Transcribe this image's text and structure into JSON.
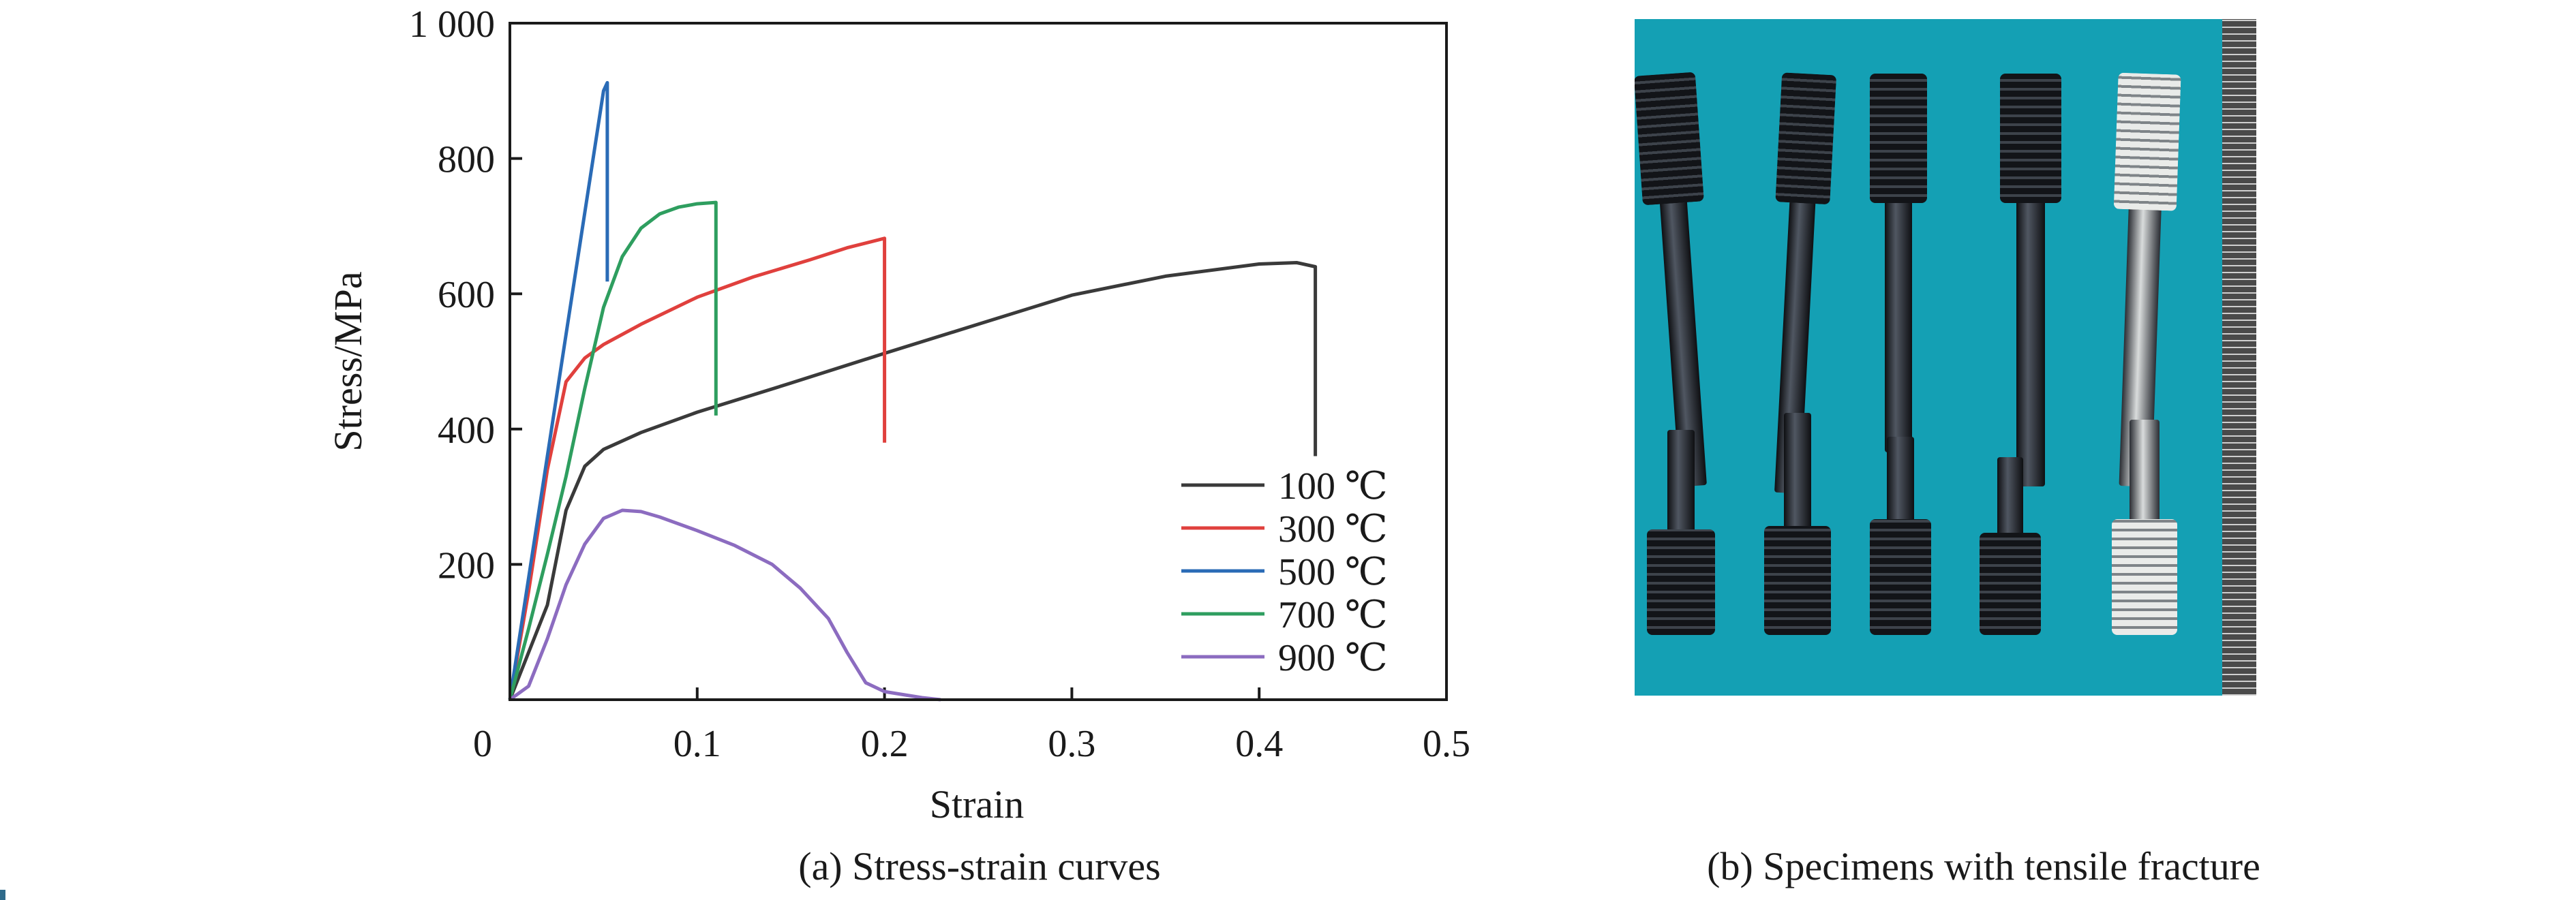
{
  "chart_data": {
    "type": "line",
    "title": "",
    "xlabel": "Strain",
    "ylabel": "Stress/MPa",
    "xlim": [
      0,
      0.5
    ],
    "ylim": [
      0,
      1000
    ],
    "xticks": [
      0,
      0.1,
      0.2,
      0.3,
      0.4,
      0.5
    ],
    "xtick_labels": [
      "0",
      "0.1",
      "0.2",
      "0.3",
      "0.4",
      "0.5"
    ],
    "yticks": [
      200,
      400,
      600,
      800,
      1000
    ],
    "ytick_labels": [
      "200",
      "400",
      "600",
      "800",
      "1 000"
    ],
    "grid": false,
    "legend": "bottom-right",
    "series": [
      {
        "name": "100 ℃",
        "color": "#3a3a3a",
        "points": [
          [
            0,
            0
          ],
          [
            0.02,
            140
          ],
          [
            0.03,
            280
          ],
          [
            0.04,
            345
          ],
          [
            0.05,
            370
          ],
          [
            0.07,
            395
          ],
          [
            0.1,
            425
          ],
          [
            0.15,
            468
          ],
          [
            0.2,
            512
          ],
          [
            0.25,
            555
          ],
          [
            0.3,
            598
          ],
          [
            0.35,
            626
          ],
          [
            0.4,
            644
          ],
          [
            0.42,
            646
          ],
          [
            0.43,
            640
          ],
          [
            0.43,
            360
          ]
        ]
      },
      {
        "name": "300 ℃",
        "color": "#e0403d",
        "points": [
          [
            0,
            0
          ],
          [
            0.01,
            160
          ],
          [
            0.02,
            340
          ],
          [
            0.03,
            470
          ],
          [
            0.04,
            505
          ],
          [
            0.05,
            525
          ],
          [
            0.07,
            555
          ],
          [
            0.1,
            595
          ],
          [
            0.13,
            625
          ],
          [
            0.16,
            650
          ],
          [
            0.18,
            668
          ],
          [
            0.2,
            682
          ],
          [
            0.2,
            380
          ]
        ]
      },
      {
        "name": "500 ℃",
        "color": "#2a6bb6",
        "points": [
          [
            0,
            0
          ],
          [
            0.01,
            180
          ],
          [
            0.02,
            360
          ],
          [
            0.03,
            540
          ],
          [
            0.04,
            720
          ],
          [
            0.05,
            900
          ],
          [
            0.052,
            912
          ],
          [
            0.052,
            618
          ]
        ]
      },
      {
        "name": "700 ℃",
        "color": "#2e9e5f",
        "points": [
          [
            0,
            0
          ],
          [
            0.01,
            105
          ],
          [
            0.02,
            215
          ],
          [
            0.03,
            330
          ],
          [
            0.04,
            460
          ],
          [
            0.05,
            580
          ],
          [
            0.06,
            655
          ],
          [
            0.07,
            697
          ],
          [
            0.08,
            718
          ],
          [
            0.09,
            728
          ],
          [
            0.1,
            733
          ],
          [
            0.11,
            735
          ],
          [
            0.11,
            420
          ]
        ]
      },
      {
        "name": "900 ℃",
        "color": "#8c6cc0",
        "points": [
          [
            0,
            0
          ],
          [
            0.01,
            20
          ],
          [
            0.02,
            90
          ],
          [
            0.03,
            170
          ],
          [
            0.04,
            230
          ],
          [
            0.05,
            268
          ],
          [
            0.06,
            280
          ],
          [
            0.07,
            278
          ],
          [
            0.08,
            270
          ],
          [
            0.1,
            250
          ],
          [
            0.12,
            228
          ],
          [
            0.14,
            200
          ],
          [
            0.155,
            165
          ],
          [
            0.17,
            120
          ],
          [
            0.18,
            70
          ],
          [
            0.19,
            25
          ],
          [
            0.2,
            12
          ],
          [
            0.22,
            3
          ],
          [
            0.23,
            0
          ]
        ]
      }
    ]
  },
  "captions": {
    "a": "(a) Stress-strain curves",
    "b": "(b) Specimens with tensile fracture"
  }
}
